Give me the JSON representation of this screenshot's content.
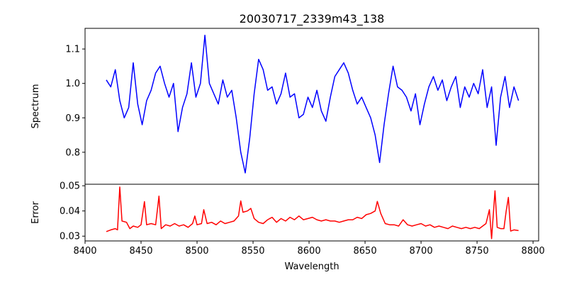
{
  "chart_data": [
    {
      "type": "line",
      "title": "20030717_2339m43_138",
      "xlabel": "",
      "ylabel": "Spectrum",
      "xlim": [
        8400,
        8805
      ],
      "ylim": [
        0.707,
        1.16
      ],
      "yticks": [
        "0.8",
        "0.9",
        "1.0",
        "1.1"
      ],
      "ytick_values": [
        0.8,
        0.9,
        1.0,
        1.1
      ],
      "color": "#0000ff",
      "x": [
        8419,
        8423,
        8427,
        8431,
        8435,
        8439,
        8443,
        8447,
        8451,
        8455,
        8459,
        8463,
        8467,
        8471,
        8475,
        8479,
        8483,
        8487,
        8491,
        8495,
        8499,
        8503,
        8507,
        8511,
        8515,
        8519,
        8523,
        8527,
        8531,
        8535,
        8539,
        8543,
        8547,
        8551,
        8555,
        8559,
        8563,
        8567,
        8571,
        8575,
        8579,
        8583,
        8587,
        8591,
        8595,
        8599,
        8603,
        8607,
        8611,
        8615,
        8619,
        8623,
        8627,
        8631,
        8635,
        8639,
        8643,
        8647,
        8651,
        8655,
        8659,
        8663,
        8667,
        8671,
        8675,
        8679,
        8683,
        8687,
        8691,
        8695,
        8699,
        8703,
        8707,
        8711,
        8715,
        8719,
        8723,
        8727,
        8731,
        8735,
        8739,
        8743,
        8747,
        8751,
        8755,
        8759,
        8763,
        8767,
        8771,
        8775,
        8779,
        8783,
        8787
      ],
      "y": [
        1.01,
        0.99,
        1.04,
        0.95,
        0.9,
        0.93,
        1.06,
        0.94,
        0.88,
        0.95,
        0.98,
        1.03,
        1.05,
        1.0,
        0.96,
        1.0,
        0.86,
        0.93,
        0.97,
        1.06,
        0.96,
        1.0,
        1.14,
        1.0,
        0.97,
        0.94,
        1.01,
        0.96,
        0.98,
        0.9,
        0.8,
        0.74,
        0.84,
        0.97,
        1.07,
        1.04,
        0.98,
        0.99,
        0.94,
        0.97,
        1.03,
        0.96,
        0.97,
        0.9,
        0.91,
        0.96,
        0.93,
        0.98,
        0.92,
        0.89,
        0.96,
        1.02,
        1.04,
        1.06,
        1.03,
        0.98,
        0.94,
        0.96,
        0.93,
        0.9,
        0.85,
        0.77,
        0.88,
        0.97,
        1.05,
        0.99,
        0.98,
        0.96,
        0.92,
        0.97,
        0.88,
        0.94,
        0.99,
        1.02,
        0.98,
        1.01,
        0.95,
        0.99,
        1.02,
        0.93,
        0.99,
        0.96,
        1.0,
        0.97,
        1.04,
        0.93,
        0.99,
        0.82,
        0.96,
        1.02,
        0.93,
        0.99,
        0.95
      ]
    },
    {
      "type": "line",
      "title": "",
      "xlabel": "Wavelength",
      "ylabel": "Error",
      "xlim": [
        8400,
        8805
      ],
      "ylim": [
        0.0281,
        0.0506
      ],
      "xticks": [
        "8400",
        "8450",
        "8500",
        "8550",
        "8600",
        "8650",
        "8700",
        "8750",
        "8800"
      ],
      "xtick_values": [
        8400,
        8450,
        8500,
        8550,
        8600,
        8650,
        8700,
        8750,
        8800
      ],
      "yticks": [
        "0.03",
        "0.04",
        "0.05"
      ],
      "ytick_values": [
        0.03,
        0.04,
        0.05
      ],
      "color": "#ff0000",
      "x": [
        8419,
        8423,
        8427,
        8429,
        8431,
        8433,
        8437,
        8440,
        8443,
        8447,
        8450,
        8453,
        8455,
        8459,
        8463,
        8466,
        8468,
        8472,
        8476,
        8480,
        8484,
        8488,
        8492,
        8496,
        8498,
        8500,
        8504,
        8506,
        8509,
        8513,
        8517,
        8521,
        8525,
        8529,
        8533,
        8537,
        8539,
        8541,
        8545,
        8548,
        8551,
        8555,
        8559,
        8563,
        8567,
        8571,
        8575,
        8579,
        8583,
        8587,
        8591,
        8595,
        8599,
        8603,
        8607,
        8611,
        8615,
        8619,
        8623,
        8627,
        8631,
        8635,
        8639,
        8643,
        8647,
        8651,
        8655,
        8659,
        8661,
        8664,
        8668,
        8672,
        8676,
        8680,
        8684,
        8688,
        8692,
        8696,
        8700,
        8704,
        8708,
        8712,
        8716,
        8720,
        8724,
        8728,
        8732,
        8736,
        8740,
        8744,
        8748,
        8752,
        8755,
        8758,
        8761,
        8763,
        8766,
        8768,
        8771,
        8774,
        8776,
        8778,
        8780,
        8783,
        8787
      ],
      "y": [
        0.0318,
        0.0325,
        0.033,
        0.0325,
        0.0495,
        0.036,
        0.0355,
        0.033,
        0.034,
        0.0335,
        0.0345,
        0.0437,
        0.0345,
        0.035,
        0.0345,
        0.0459,
        0.033,
        0.0345,
        0.034,
        0.035,
        0.034,
        0.0345,
        0.0335,
        0.035,
        0.038,
        0.0345,
        0.035,
        0.0405,
        0.035,
        0.0355,
        0.0345,
        0.036,
        0.035,
        0.0355,
        0.036,
        0.038,
        0.044,
        0.0395,
        0.04,
        0.041,
        0.037,
        0.0355,
        0.035,
        0.0365,
        0.0375,
        0.0355,
        0.037,
        0.036,
        0.0375,
        0.0365,
        0.038,
        0.0365,
        0.037,
        0.0375,
        0.0365,
        0.036,
        0.0365,
        0.036,
        0.036,
        0.0355,
        0.036,
        0.0365,
        0.0365,
        0.0375,
        0.037,
        0.0385,
        0.039,
        0.04,
        0.0438,
        0.039,
        0.035,
        0.0345,
        0.0345,
        0.034,
        0.0365,
        0.0345,
        0.034,
        0.0345,
        0.035,
        0.034,
        0.0345,
        0.0335,
        0.034,
        0.0335,
        0.033,
        0.034,
        0.0335,
        0.033,
        0.0335,
        0.033,
        0.0335,
        0.033,
        0.034,
        0.035,
        0.0405,
        0.029,
        0.048,
        0.0335,
        0.033,
        0.033,
        0.04,
        0.0454,
        0.032,
        0.0325,
        0.0322
      ]
    }
  ]
}
